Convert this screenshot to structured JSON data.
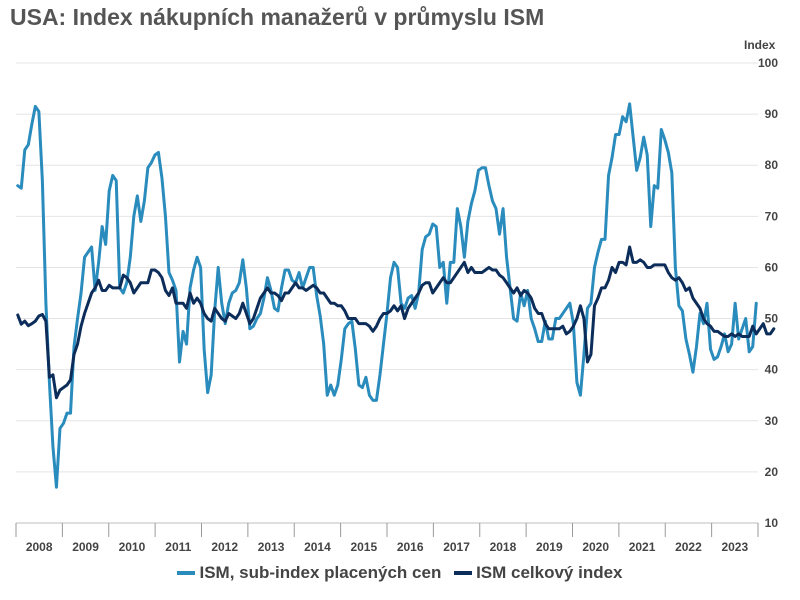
{
  "chart_data": {
    "type": "line",
    "title": "USA: Index nákupních manažerů v průmyslu ISM",
    "ylabel": "Index",
    "ylim": [
      10,
      100
    ],
    "yticks": [
      "10",
      "20",
      "30",
      "40",
      "50",
      "60",
      "70",
      "80",
      "90",
      "100"
    ],
    "y_axis_side": "right",
    "grid": true,
    "legend_position": "bottom",
    "x_start": "2008-01",
    "x_end": "2023-12",
    "x_tick_labels": [
      "2008",
      "2009",
      "2010",
      "2011",
      "2012",
      "2013",
      "2014",
      "2015",
      "2016",
      "2017",
      "2018",
      "2019",
      "2020",
      "2021",
      "2022",
      "2023"
    ],
    "series": [
      {
        "name": "ISM, sub-index placených cen",
        "color": "#2a8bbd",
        "values": [
          76,
          75.5,
          83,
          84,
          88,
          91.5,
          90.5,
          77,
          53,
          37.5,
          25,
          17,
          28.5,
          29.5,
          31.5,
          31.5,
          44.5,
          50,
          55,
          62,
          63,
          64,
          55.5,
          61,
          68,
          64.5,
          75,
          78,
          77,
          56,
          55,
          57,
          62,
          70,
          74,
          69,
          73,
          79.5,
          80.5,
          82,
          82.5,
          77.5,
          70,
          59,
          57.5,
          55.5,
          41.5,
          47.5,
          45,
          56,
          59.5,
          62,
          60,
          44,
          35.5,
          39,
          51.5,
          60,
          53,
          49,
          53,
          55,
          55.5,
          57,
          61.5,
          56,
          48,
          48.5,
          50,
          51,
          54,
          58,
          55.5,
          52,
          51.5,
          56,
          59.5,
          59.5,
          57.5,
          57,
          59,
          56,
          58,
          60,
          60,
          54.5,
          50.5,
          45,
          35,
          37,
          35,
          37,
          42,
          48,
          49,
          49.5,
          44,
          37,
          36.5,
          38.5,
          35,
          34,
          34,
          39,
          45,
          51,
          58,
          61,
          60,
          53,
          52,
          54,
          54.5,
          52,
          55,
          63.5,
          66,
          66.5,
          68.5,
          68,
          60,
          61,
          53,
          61,
          61,
          71.5,
          68,
          62,
          69,
          72.5,
          75,
          79,
          79.5,
          79.5,
          76,
          73,
          71.5,
          66.5,
          71.5,
          62,
          56,
          50,
          49.5,
          55,
          52.5,
          55.5,
          50,
          48,
          45.5,
          45.5,
          49.5,
          46,
          46,
          50,
          50,
          51,
          52,
          53,
          49,
          37.5,
          35,
          43,
          52,
          53,
          60,
          63,
          65.5,
          65.5,
          78,
          81.5,
          86,
          86,
          89.5,
          88.5,
          92,
          85.5,
          79,
          81.5,
          85.5,
          82,
          68,
          76,
          75.5,
          87,
          85,
          82.5,
          78.5,
          60,
          52.5,
          51.5,
          46,
          43,
          39.5,
          44.5,
          51,
          49,
          53,
          44,
          42,
          42.5,
          44.5,
          47,
          43.5,
          45,
          53,
          46,
          48,
          50,
          43.5,
          44.5,
          53
        ]
      },
      {
        "name": "ISM celkový index",
        "color": "#0c2d5a",
        "values": [
          50.7,
          48.9,
          49.5,
          48.6,
          49,
          49.5,
          50.5,
          50.8,
          49.5,
          38.5,
          39,
          34.5,
          36,
          36.5,
          37,
          38,
          43,
          45,
          48.5,
          51,
          53,
          55,
          56,
          57.5,
          55.5,
          55.5,
          56.5,
          56,
          56,
          56,
          58.5,
          58,
          57,
          55,
          56,
          57,
          57,
          57,
          59.5,
          59.5,
          59,
          58,
          55.5,
          54.5,
          56,
          53,
          53,
          53,
          52,
          55,
          53,
          54,
          53,
          51,
          50,
          49.5,
          52,
          51,
          50,
          49.5,
          51,
          50.5,
          50,
          51,
          53,
          51,
          49,
          50,
          52,
          54,
          55,
          56,
          55,
          55,
          54.5,
          53.5,
          55,
          55,
          56,
          57,
          56,
          56,
          55.5,
          56,
          56.5,
          56,
          55,
          55,
          54,
          53,
          53,
          52.5,
          52.5,
          51.5,
          50,
          50,
          50,
          49,
          49,
          49,
          48.5,
          47.5,
          48.5,
          50,
          51,
          51,
          51.5,
          52.5,
          51.5,
          52.5,
          50,
          52,
          53,
          54,
          55,
          56.5,
          57,
          57,
          55,
          56,
          57,
          58,
          57,
          57,
          58,
          59,
          60,
          61,
          59,
          60,
          59,
          59,
          59,
          59.5,
          60,
          59.5,
          59.5,
          58.5,
          58,
          57,
          56,
          55,
          56,
          54.5,
          55.5,
          55,
          54,
          52,
          51,
          51,
          49,
          48,
          48,
          48,
          48,
          48.5,
          47,
          47.5,
          48.5,
          50,
          52.5,
          50,
          41.5,
          43,
          52.5,
          54,
          56,
          56,
          57.5,
          60,
          59,
          61,
          61,
          60.5,
          64,
          61,
          61,
          61.5,
          61,
          60,
          60,
          60.5,
          60.5,
          60.5,
          60.5,
          59,
          58,
          57.5,
          58,
          57,
          55.5,
          56,
          54,
          53,
          52,
          50,
          49,
          48.5,
          47.5,
          47.5,
          47,
          46.5,
          46.5,
          47,
          46.5,
          47,
          46.5,
          46.5,
          46.5,
          48.5,
          47,
          48,
          49,
          47,
          47,
          48
        ]
      }
    ]
  }
}
